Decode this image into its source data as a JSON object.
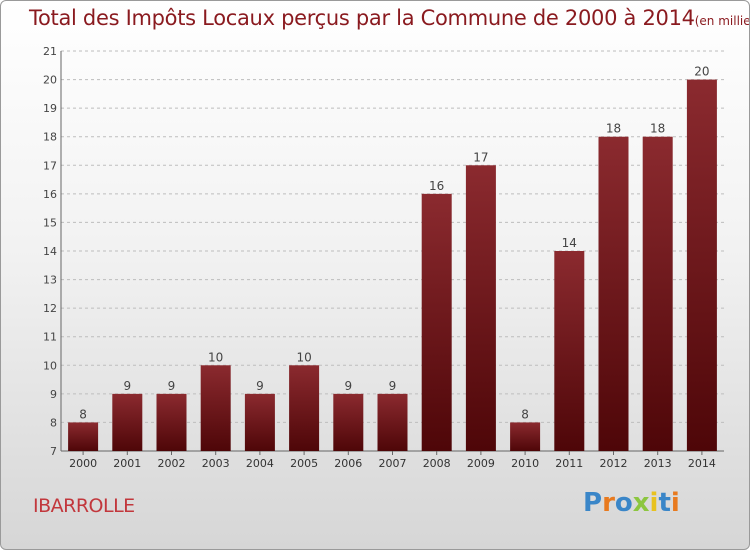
{
  "title": {
    "main": "Total des Impôts Locaux perçus par la Commune de 2000 à 2014",
    "unit": "(en milliers d'€)"
  },
  "commune": "IBARROLLE",
  "logo": {
    "text": "Proxiti",
    "colors": [
      "#3a86c8",
      "#e87a1f",
      "#3a86c8",
      "#8cc63f",
      "#e8c21f",
      "#3a86c8",
      "#e87a1f"
    ]
  },
  "colors": {
    "bar_top": "#8b2a2f",
    "bar_bottom": "#4e0608",
    "title": "#8a1a1f",
    "commune": "#c2373c",
    "grid": "#bdbdbd"
  },
  "chart_data": {
    "type": "bar",
    "title": "Total des Impôts Locaux perçus par la Commune de 2000 à 2014",
    "xlabel": "",
    "ylabel": "",
    "ylim": [
      7,
      21
    ],
    "yticks": [
      7,
      8,
      9,
      10,
      11,
      12,
      13,
      14,
      15,
      16,
      17,
      18,
      19,
      20,
      21
    ],
    "grid": true,
    "categories": [
      "2000",
      "2001",
      "2002",
      "2003",
      "2004",
      "2005",
      "2006",
      "2007",
      "2008",
      "2009",
      "2010",
      "2011",
      "2012",
      "2013",
      "2014"
    ],
    "values": [
      8,
      9,
      9,
      10,
      9,
      10,
      9,
      9,
      16,
      17,
      8,
      14,
      18,
      18,
      20
    ],
    "data_labels": [
      "8",
      "9",
      "9",
      "10",
      "9",
      "10",
      "9",
      "9",
      "16",
      "17",
      "8",
      "14",
      "18",
      "18",
      "20"
    ]
  }
}
